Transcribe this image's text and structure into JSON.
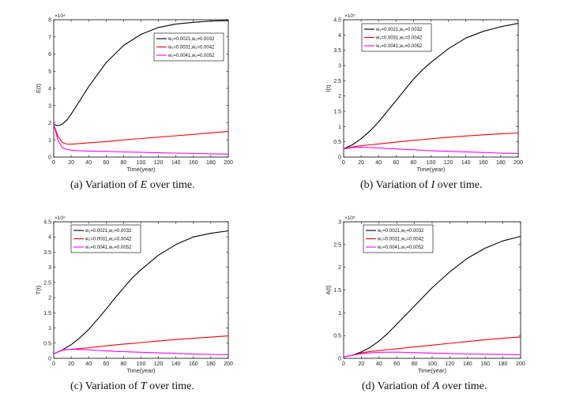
{
  "chart_data": [
    {
      "type": "line",
      "ylabel": "E(t)",
      "xlabel": "Time(year)",
      "y_multiplier": "×10⁴",
      "xlim": [
        0,
        200
      ],
      "ylim": [
        0,
        8
      ],
      "x_ticks": [
        0,
        20,
        40,
        60,
        80,
        100,
        120,
        140,
        160,
        180,
        200
      ],
      "y_ticks": [
        0,
        1,
        2,
        3,
        4,
        5,
        6,
        7,
        8
      ],
      "x": [
        0,
        5,
        10,
        15,
        20,
        30,
        40,
        60,
        80,
        100,
        120,
        140,
        160,
        180,
        200
      ],
      "series": [
        {
          "name": "w₁=0.0021,w₂=0.0032",
          "color": "#000000",
          "values": [
            1.9,
            1.82,
            1.92,
            2.15,
            2.5,
            3.3,
            4.1,
            5.5,
            6.5,
            7.15,
            7.55,
            7.75,
            7.85,
            7.92,
            7.95
          ]
        },
        {
          "name": "w₁=0.0031,w₂=0.0042",
          "color": "#ff0000",
          "values": [
            1.9,
            1.2,
            0.85,
            0.76,
            0.75,
            0.79,
            0.83,
            0.9,
            1.0,
            1.08,
            1.16,
            1.24,
            1.32,
            1.41,
            1.5
          ]
        },
        {
          "name": "w₁=0.0041,w₂=0.0052",
          "color": "#ff00ff",
          "values": [
            1.9,
            0.95,
            0.55,
            0.45,
            0.4,
            0.37,
            0.35,
            0.33,
            0.3,
            0.28,
            0.25,
            0.23,
            0.21,
            0.19,
            0.17
          ]
        }
      ],
      "caption_prefix": "(a) Variation of ",
      "caption_var": "E",
      "caption_suffix": " over time."
    },
    {
      "type": "line",
      "ylabel": "I(t)",
      "xlabel": "Time(year)",
      "y_multiplier": "×10⁵",
      "xlim": [
        0,
        200
      ],
      "ylim": [
        0,
        4.5
      ],
      "x_ticks": [
        0,
        20,
        40,
        60,
        80,
        100,
        120,
        140,
        160,
        180,
        200
      ],
      "y_ticks": [
        0,
        0.5,
        1,
        1.5,
        2,
        2.5,
        3,
        3.5,
        4,
        4.5
      ],
      "x": [
        0,
        10,
        20,
        30,
        40,
        50,
        60,
        70,
        80,
        90,
        100,
        120,
        140,
        160,
        180,
        200
      ],
      "series": [
        {
          "name": "w₁=0.0021,w₂=0.0032",
          "color": "#000000",
          "values": [
            0.27,
            0.4,
            0.6,
            0.85,
            1.15,
            1.5,
            1.85,
            2.2,
            2.55,
            2.85,
            3.1,
            3.55,
            3.9,
            4.12,
            4.27,
            4.38
          ]
        },
        {
          "name": "w₁=0.0031,w₂=0.0042",
          "color": "#ff0000",
          "values": [
            0.27,
            0.33,
            0.37,
            0.4,
            0.43,
            0.46,
            0.49,
            0.52,
            0.55,
            0.57,
            0.6,
            0.65,
            0.69,
            0.73,
            0.76,
            0.79
          ]
        },
        {
          "name": "w₁=0.0041,w₂=0.0052",
          "color": "#ff00ff",
          "values": [
            0.27,
            0.31,
            0.32,
            0.31,
            0.3,
            0.28,
            0.27,
            0.25,
            0.24,
            0.22,
            0.21,
            0.19,
            0.17,
            0.15,
            0.13,
            0.12
          ]
        }
      ],
      "caption_prefix": "(b) Variation of ",
      "caption_var": "I",
      "caption_suffix": " over time."
    },
    {
      "type": "line",
      "ylabel": "T(t)",
      "xlabel": "Time(year)",
      "y_multiplier": "×10⁵",
      "xlim": [
        0,
        200
      ],
      "ylim": [
        0,
        4.5
      ],
      "x_ticks": [
        0,
        20,
        40,
        60,
        80,
        100,
        120,
        140,
        160,
        180,
        200
      ],
      "y_ticks": [
        0,
        0.5,
        1,
        1.5,
        2,
        2.5,
        3,
        3.5,
        4,
        4.5
      ],
      "x": [
        0,
        10,
        20,
        30,
        40,
        50,
        60,
        70,
        80,
        90,
        100,
        120,
        140,
        160,
        180,
        200
      ],
      "series": [
        {
          "name": "w₁=0.0021,w₂=0.0032",
          "color": "#000000",
          "values": [
            0.15,
            0.28,
            0.45,
            0.68,
            0.95,
            1.28,
            1.62,
            1.98,
            2.32,
            2.65,
            2.92,
            3.4,
            3.75,
            4.0,
            4.12,
            4.2
          ]
        },
        {
          "name": "w₁=0.0031,w₂=0.0042",
          "color": "#ff0000",
          "values": [
            0.15,
            0.27,
            0.3,
            0.32,
            0.35,
            0.38,
            0.41,
            0.44,
            0.47,
            0.49,
            0.52,
            0.57,
            0.62,
            0.66,
            0.7,
            0.74
          ]
        },
        {
          "name": "w₁=0.0041,w₂=0.0052",
          "color": "#ff00ff",
          "values": [
            0.15,
            0.28,
            0.3,
            0.29,
            0.28,
            0.26,
            0.25,
            0.23,
            0.22,
            0.21,
            0.2,
            0.18,
            0.16,
            0.14,
            0.13,
            0.12
          ]
        }
      ],
      "caption_prefix": "(c) Variation of ",
      "caption_var": "T",
      "caption_suffix": " over time."
    },
    {
      "type": "line",
      "ylabel": "A(t)",
      "xlabel": "Time(year)",
      "y_multiplier": "×10⁵",
      "xlim": [
        0,
        200
      ],
      "ylim": [
        0,
        3
      ],
      "x_ticks": [
        0,
        20,
        40,
        60,
        80,
        100,
        120,
        140,
        160,
        180,
        200
      ],
      "y_ticks": [
        0,
        0.5,
        1,
        1.5,
        2,
        2.5,
        3
      ],
      "x": [
        0,
        10,
        20,
        30,
        40,
        50,
        60,
        70,
        80,
        90,
        100,
        120,
        140,
        160,
        180,
        200
      ],
      "series": [
        {
          "name": "w₁=0.0021,w₂=0.0032",
          "color": "#000000",
          "values": [
            0.03,
            0.07,
            0.14,
            0.24,
            0.38,
            0.55,
            0.75,
            0.95,
            1.15,
            1.35,
            1.55,
            1.9,
            2.2,
            2.42,
            2.58,
            2.68
          ]
        },
        {
          "name": "w₁=0.0031,w₂=0.0042",
          "color": "#ff0000",
          "values": [
            0.03,
            0.07,
            0.12,
            0.15,
            0.17,
            0.19,
            0.21,
            0.23,
            0.25,
            0.27,
            0.29,
            0.33,
            0.37,
            0.41,
            0.44,
            0.47
          ]
        },
        {
          "name": "w₁=0.0041,w₂=0.0052",
          "color": "#ff00ff",
          "values": [
            0.03,
            0.07,
            0.1,
            0.12,
            0.13,
            0.135,
            0.135,
            0.13,
            0.125,
            0.12,
            0.115,
            0.105,
            0.095,
            0.09,
            0.085,
            0.08
          ]
        }
      ],
      "caption_prefix": "(d) Variation of ",
      "caption_var": "A",
      "caption_suffix": " over time."
    }
  ]
}
